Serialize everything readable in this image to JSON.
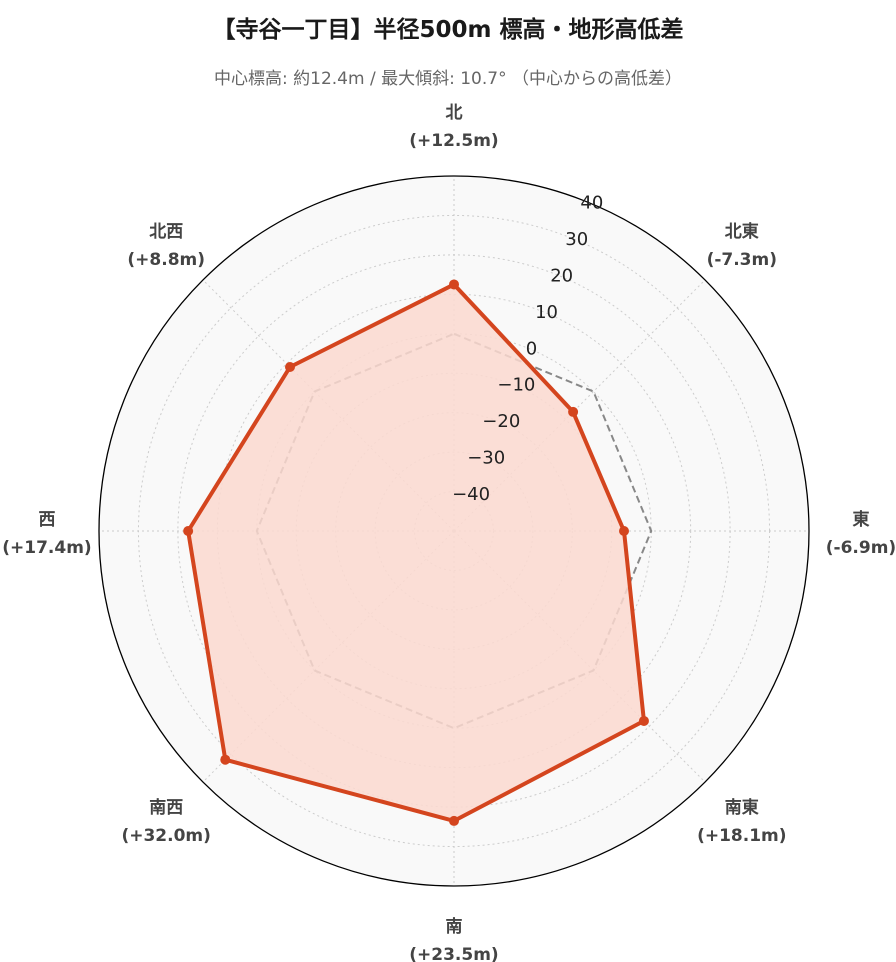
{
  "title": "【寺谷一丁目】半径500m 標高・地形高低差",
  "subtitle": "中心標高: 約12.4m / 最大傾斜: 10.7° （中心からの高低差）",
  "chart_data": {
    "type": "radar",
    "categories": [
      "北",
      "北東",
      "東",
      "南東",
      "南",
      "南西",
      "西",
      "北西"
    ],
    "category_labels": [
      "(+12.5m)",
      "(-7.3m)",
      "(-6.9m)",
      "(+18.1m)",
      "(+23.5m)",
      "(+32.0m)",
      "(+17.4m)",
      "(+8.8m)"
    ],
    "series": [
      {
        "values": [
          12.5,
          -7.3,
          -6.9,
          18.1,
          23.5,
          32.0,
          17.4,
          8.8
        ],
        "color": "#d4451e",
        "fill": "#fbd9d0",
        "style": "solid-markers"
      },
      {
        "values": [
          0,
          0,
          0,
          0,
          0,
          0,
          0,
          0
        ],
        "color": "#888888",
        "style": "dashed"
      }
    ],
    "r_ticks": [
      -40,
      -30,
      -20,
      -10,
      0,
      10,
      20,
      30,
      40
    ],
    "r_tick_labels": [
      "−40",
      "−30",
      "−20",
      "−10",
      "0",
      "10",
      "20",
      "30",
      "40"
    ],
    "rlim": [
      -50,
      40
    ],
    "grid": true,
    "background_color": "#f9f9f9"
  }
}
